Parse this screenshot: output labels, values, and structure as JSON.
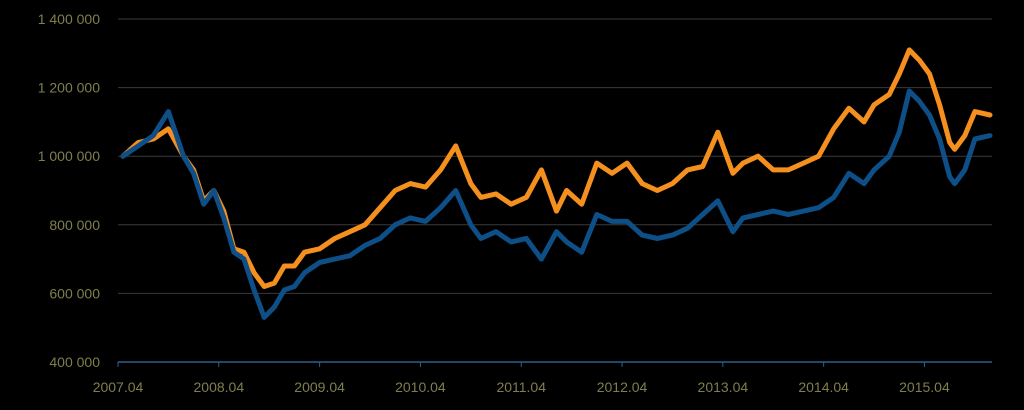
{
  "chart_data": {
    "type": "line",
    "title": "",
    "xlabel": "",
    "ylabel": "",
    "ylim": [
      400000,
      1400000
    ],
    "xlim": [
      2007.25,
      2015.92
    ],
    "grid": true,
    "legend": "none",
    "y_ticks": [
      {
        "value": 400000,
        "label": "400 000"
      },
      {
        "value": 600000,
        "label": "600 000"
      },
      {
        "value": 800000,
        "label": "800 000"
      },
      {
        "value": 1000000,
        "label": "1 000 000"
      },
      {
        "value": 1200000,
        "label": "1 200 000"
      },
      {
        "value": 1400000,
        "label": "1 400 000"
      }
    ],
    "x_ticks": [
      {
        "value": 2007.25,
        "label": "2007.04"
      },
      {
        "value": 2008.25,
        "label": "2008.04"
      },
      {
        "value": 2009.25,
        "label": "2009.04"
      },
      {
        "value": 2010.25,
        "label": "2010.04"
      },
      {
        "value": 2011.25,
        "label": "2011.04"
      },
      {
        "value": 2012.25,
        "label": "2012.04"
      },
      {
        "value": 2013.25,
        "label": "2013.04"
      },
      {
        "value": 2014.25,
        "label": "2014.04"
      },
      {
        "value": 2015.25,
        "label": "2015.04"
      }
    ],
    "x": [
      2007.3,
      2007.45,
      2007.6,
      2007.75,
      2007.9,
      2008.0,
      2008.1,
      2008.2,
      2008.3,
      2008.4,
      2008.5,
      2008.6,
      2008.7,
      2008.8,
      2008.9,
      2009.0,
      2009.1,
      2009.25,
      2009.4,
      2009.55,
      2009.7,
      2009.85,
      2010.0,
      2010.15,
      2010.3,
      2010.45,
      2010.6,
      2010.75,
      2010.85,
      2011.0,
      2011.15,
      2011.3,
      2011.45,
      2011.6,
      2011.7,
      2011.85,
      2012.0,
      2012.15,
      2012.3,
      2012.45,
      2012.6,
      2012.75,
      2012.9,
      2013.05,
      2013.2,
      2013.35,
      2013.45,
      2013.6,
      2013.75,
      2013.9,
      2014.05,
      2014.2,
      2014.35,
      2014.5,
      2014.65,
      2014.75,
      2014.9,
      2015.0,
      2015.1,
      2015.2,
      2015.3,
      2015.4,
      2015.5,
      2015.55,
      2015.65,
      2015.75,
      2015.9
    ],
    "series": [
      {
        "color": "#f5901e",
        "values": [
          1000000,
          1040000,
          1050000,
          1080000,
          1000000,
          960000,
          870000,
          900000,
          840000,
          730000,
          720000,
          660000,
          620000,
          630000,
          680000,
          680000,
          720000,
          730000,
          760000,
          780000,
          800000,
          850000,
          900000,
          920000,
          910000,
          960000,
          1030000,
          920000,
          880000,
          890000,
          860000,
          880000,
          960000,
          840000,
          900000,
          860000,
          980000,
          950000,
          980000,
          920000,
          900000,
          920000,
          960000,
          970000,
          1070000,
          950000,
          980000,
          1000000,
          960000,
          960000,
          980000,
          1000000,
          1080000,
          1140000,
          1100000,
          1150000,
          1180000,
          1240000,
          1310000,
          1280000,
          1240000,
          1150000,
          1040000,
          1020000,
          1060000,
          1130000,
          1120000
        ]
      },
      {
        "color": "#0d4f86",
        "values": [
          1000000,
          1030000,
          1060000,
          1130000,
          1000000,
          950000,
          860000,
          900000,
          820000,
          720000,
          700000,
          610000,
          530000,
          560000,
          610000,
          620000,
          660000,
          690000,
          700000,
          710000,
          740000,
          760000,
          800000,
          820000,
          810000,
          850000,
          900000,
          800000,
          760000,
          780000,
          750000,
          760000,
          700000,
          780000,
          750000,
          720000,
          830000,
          810000,
          810000,
          770000,
          760000,
          770000,
          790000,
          830000,
          870000,
          780000,
          820000,
          830000,
          840000,
          830000,
          840000,
          850000,
          880000,
          950000,
          920000,
          960000,
          1000000,
          1070000,
          1190000,
          1160000,
          1120000,
          1050000,
          940000,
          920000,
          960000,
          1050000,
          1060000
        ]
      }
    ]
  }
}
